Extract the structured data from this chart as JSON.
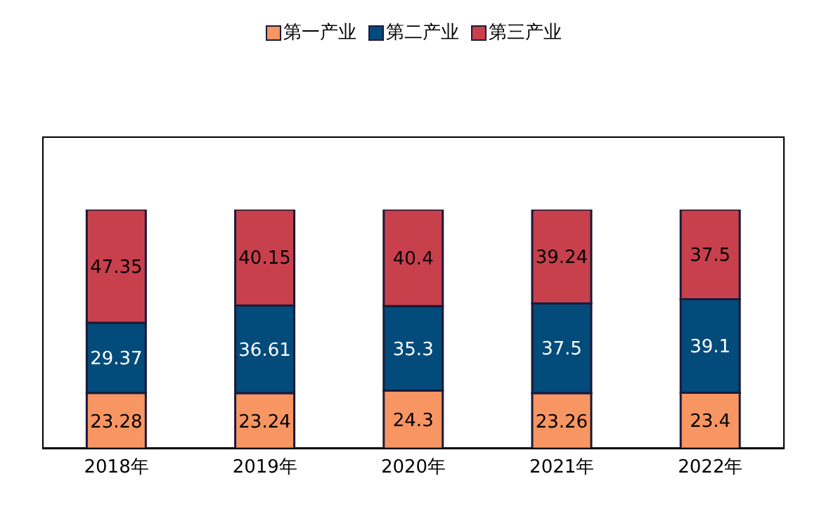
{
  "chart_data": {
    "type": "bar",
    "stacked": true,
    "categories": [
      "2018年",
      "2019年",
      "2020年",
      "2021年",
      "2022年"
    ],
    "series": [
      {
        "name": "第一产业",
        "color": "#f79563",
        "values": [
          23.28,
          23.24,
          24.3,
          23.26,
          23.4
        ]
      },
      {
        "name": "第二产业",
        "color": "#024b7a",
        "values": [
          29.37,
          36.61,
          35.3,
          37.5,
          39.1
        ]
      },
      {
        "name": "第三产业",
        "color": "#c8404c",
        "values": [
          47.35,
          40.15,
          40.4,
          39.24,
          37.5
        ]
      }
    ],
    "tick_labels": "x",
    "data_labels": true,
    "legend": "top",
    "grid": false
  }
}
